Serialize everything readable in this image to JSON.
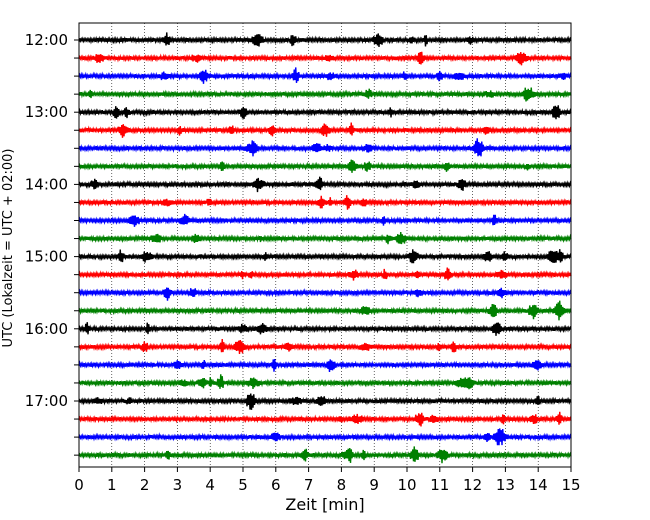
{
  "chart_data": {
    "type": "line",
    "xlabel": "Zeit  [min]",
    "ylabel": "UTC (Lokalzeit = UTC + 02:00)",
    "xlim": [
      0,
      15
    ],
    "x_ticks": [
      0,
      1,
      2,
      3,
      4,
      5,
      6,
      7,
      8,
      9,
      10,
      11,
      12,
      13,
      14,
      15
    ],
    "x_grid": "dotted",
    "y_tick_labels": [
      "12:00",
      "13:00",
      "14:00",
      "15:00",
      "16:00",
      "17:00"
    ],
    "trace_interval_minutes": 15,
    "trace_count": 24,
    "trace_colors": [
      "#000000",
      "#ff0000",
      "#0000ff",
      "#008000"
    ],
    "start_time": "12:00",
    "end_time": "17:45"
  }
}
